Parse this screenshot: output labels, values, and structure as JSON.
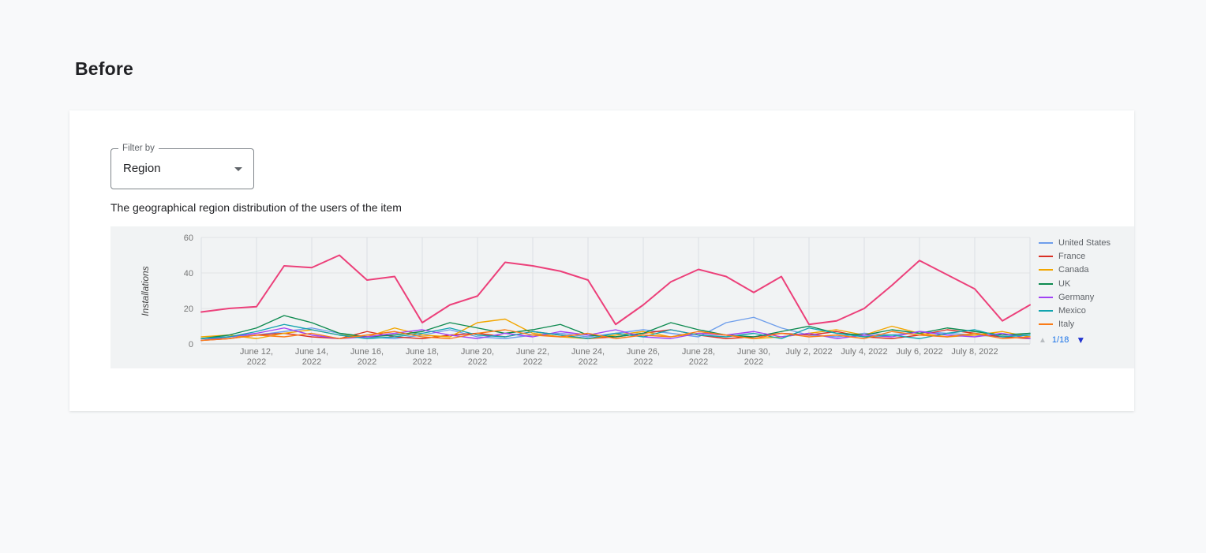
{
  "page": {
    "heading": "Before"
  },
  "card": {
    "filter": {
      "label": "Filter by",
      "value": "Region"
    },
    "description": "The geographical region distribution of the users of the item"
  },
  "chart_data": {
    "type": "line",
    "title": "",
    "ylabel": "Installations",
    "ylim": [
      0,
      60
    ],
    "yticks": [
      0,
      20,
      40,
      60
    ],
    "x_tick_labels": [
      "June 12, 2022",
      "June 14, 2022",
      "June 16, 2022",
      "June 18, 2022",
      "June 20, 2022",
      "June 22, 2022",
      "June 24, 2022",
      "June 26, 2022",
      "June 28, 2022",
      "June 30, 2022",
      "July 2, 2022",
      "July 4, 2022",
      "July 6, 2022",
      "July 8, 2022"
    ],
    "x_tick_indices": [
      2,
      4,
      6,
      8,
      10,
      12,
      14,
      16,
      18,
      20,
      22,
      24,
      26,
      28
    ],
    "n_points": 31,
    "grid": "on",
    "legend_position": "right",
    "series": [
      {
        "label": "United States",
        "color": "#6e9eeb",
        "highlighted": false,
        "values": [
          3,
          4,
          5,
          7,
          9,
          6,
          4,
          3,
          5,
          8,
          4,
          3,
          5,
          6,
          4,
          6,
          8,
          6,
          4,
          12,
          15,
          9,
          5,
          4,
          6,
          5,
          7,
          6,
          5,
          4,
          6
        ]
      },
      {
        "label": "France",
        "color": "#d93025",
        "highlighted": false,
        "values": [
          2,
          3,
          5,
          6,
          4,
          3,
          7,
          4,
          3,
          5,
          6,
          4,
          7,
          5,
          3,
          4,
          6,
          8,
          5,
          3,
          4,
          6,
          5,
          7,
          4,
          3,
          5,
          8,
          6,
          4,
          3
        ]
      },
      {
        "label": "Canada",
        "color": "#f2a600",
        "highlighted": false,
        "values": [
          4,
          5,
          3,
          6,
          8,
          5,
          4,
          9,
          5,
          4,
          12,
          14,
          6,
          4,
          3,
          5,
          7,
          4,
          6,
          5,
          3,
          4,
          6,
          8,
          5,
          10,
          6,
          4,
          5,
          7,
          4
        ]
      },
      {
        "label": "UK",
        "color": "#0d8a4f",
        "highlighted": false,
        "values": [
          3,
          5,
          9,
          16,
          12,
          6,
          4,
          5,
          7,
          12,
          9,
          6,
          8,
          11,
          5,
          4,
          6,
          12,
          8,
          5,
          4,
          7,
          10,
          6,
          5,
          8,
          6,
          9,
          7,
          5,
          6
        ]
      },
      {
        "label": "Germany",
        "color": "#a142f4",
        "highlighted": false,
        "values": [
          2,
          4,
          6,
          9,
          5,
          3,
          4,
          6,
          8,
          5,
          3,
          6,
          4,
          7,
          5,
          8,
          4,
          3,
          6,
          5,
          7,
          4,
          6,
          3,
          5,
          4,
          7,
          5,
          4,
          6,
          3
        ]
      },
      {
        "label": "Mexico",
        "color": "#12a4af",
        "highlighted": false,
        "values": [
          3,
          4,
          7,
          11,
          8,
          5,
          3,
          4,
          6,
          9,
          5,
          4,
          7,
          5,
          3,
          6,
          4,
          8,
          5,
          4,
          6,
          3,
          9,
          6,
          4,
          5,
          3,
          6,
          8,
          4,
          5
        ]
      },
      {
        "label": "Italy",
        "color": "#fa7b17",
        "highlighted": false,
        "values": [
          2,
          3,
          5,
          4,
          6,
          3,
          5,
          7,
          4,
          3,
          6,
          8,
          5,
          4,
          6,
          3,
          5,
          4,
          7,
          5,
          3,
          6,
          4,
          5,
          3,
          7,
          5,
          4,
          6,
          3,
          4
        ]
      },
      {
        "label": "",
        "color": "#ec407a",
        "highlighted": true,
        "values": [
          18,
          20,
          21,
          44,
          43,
          50,
          36,
          38,
          12,
          22,
          27,
          46,
          44,
          41,
          36,
          11,
          22,
          35,
          42,
          38,
          29,
          38,
          11,
          13,
          20,
          33,
          47,
          39,
          31,
          13,
          22
        ]
      }
    ],
    "legend": {
      "entries_visible": [
        "United States",
        "France",
        "Canada",
        "UK",
        "Germany",
        "Mexico",
        "Italy"
      ],
      "pagination": {
        "current": "1/18",
        "up_icon": "▲",
        "down_icon": "▼"
      }
    },
    "colors": {
      "panel_background": "#f1f3f4",
      "grid": "#dcdfe3",
      "axis_text": "#757575",
      "pagination_active": "#1a73e8",
      "pagination_disabled": "#b8bcc0"
    }
  }
}
